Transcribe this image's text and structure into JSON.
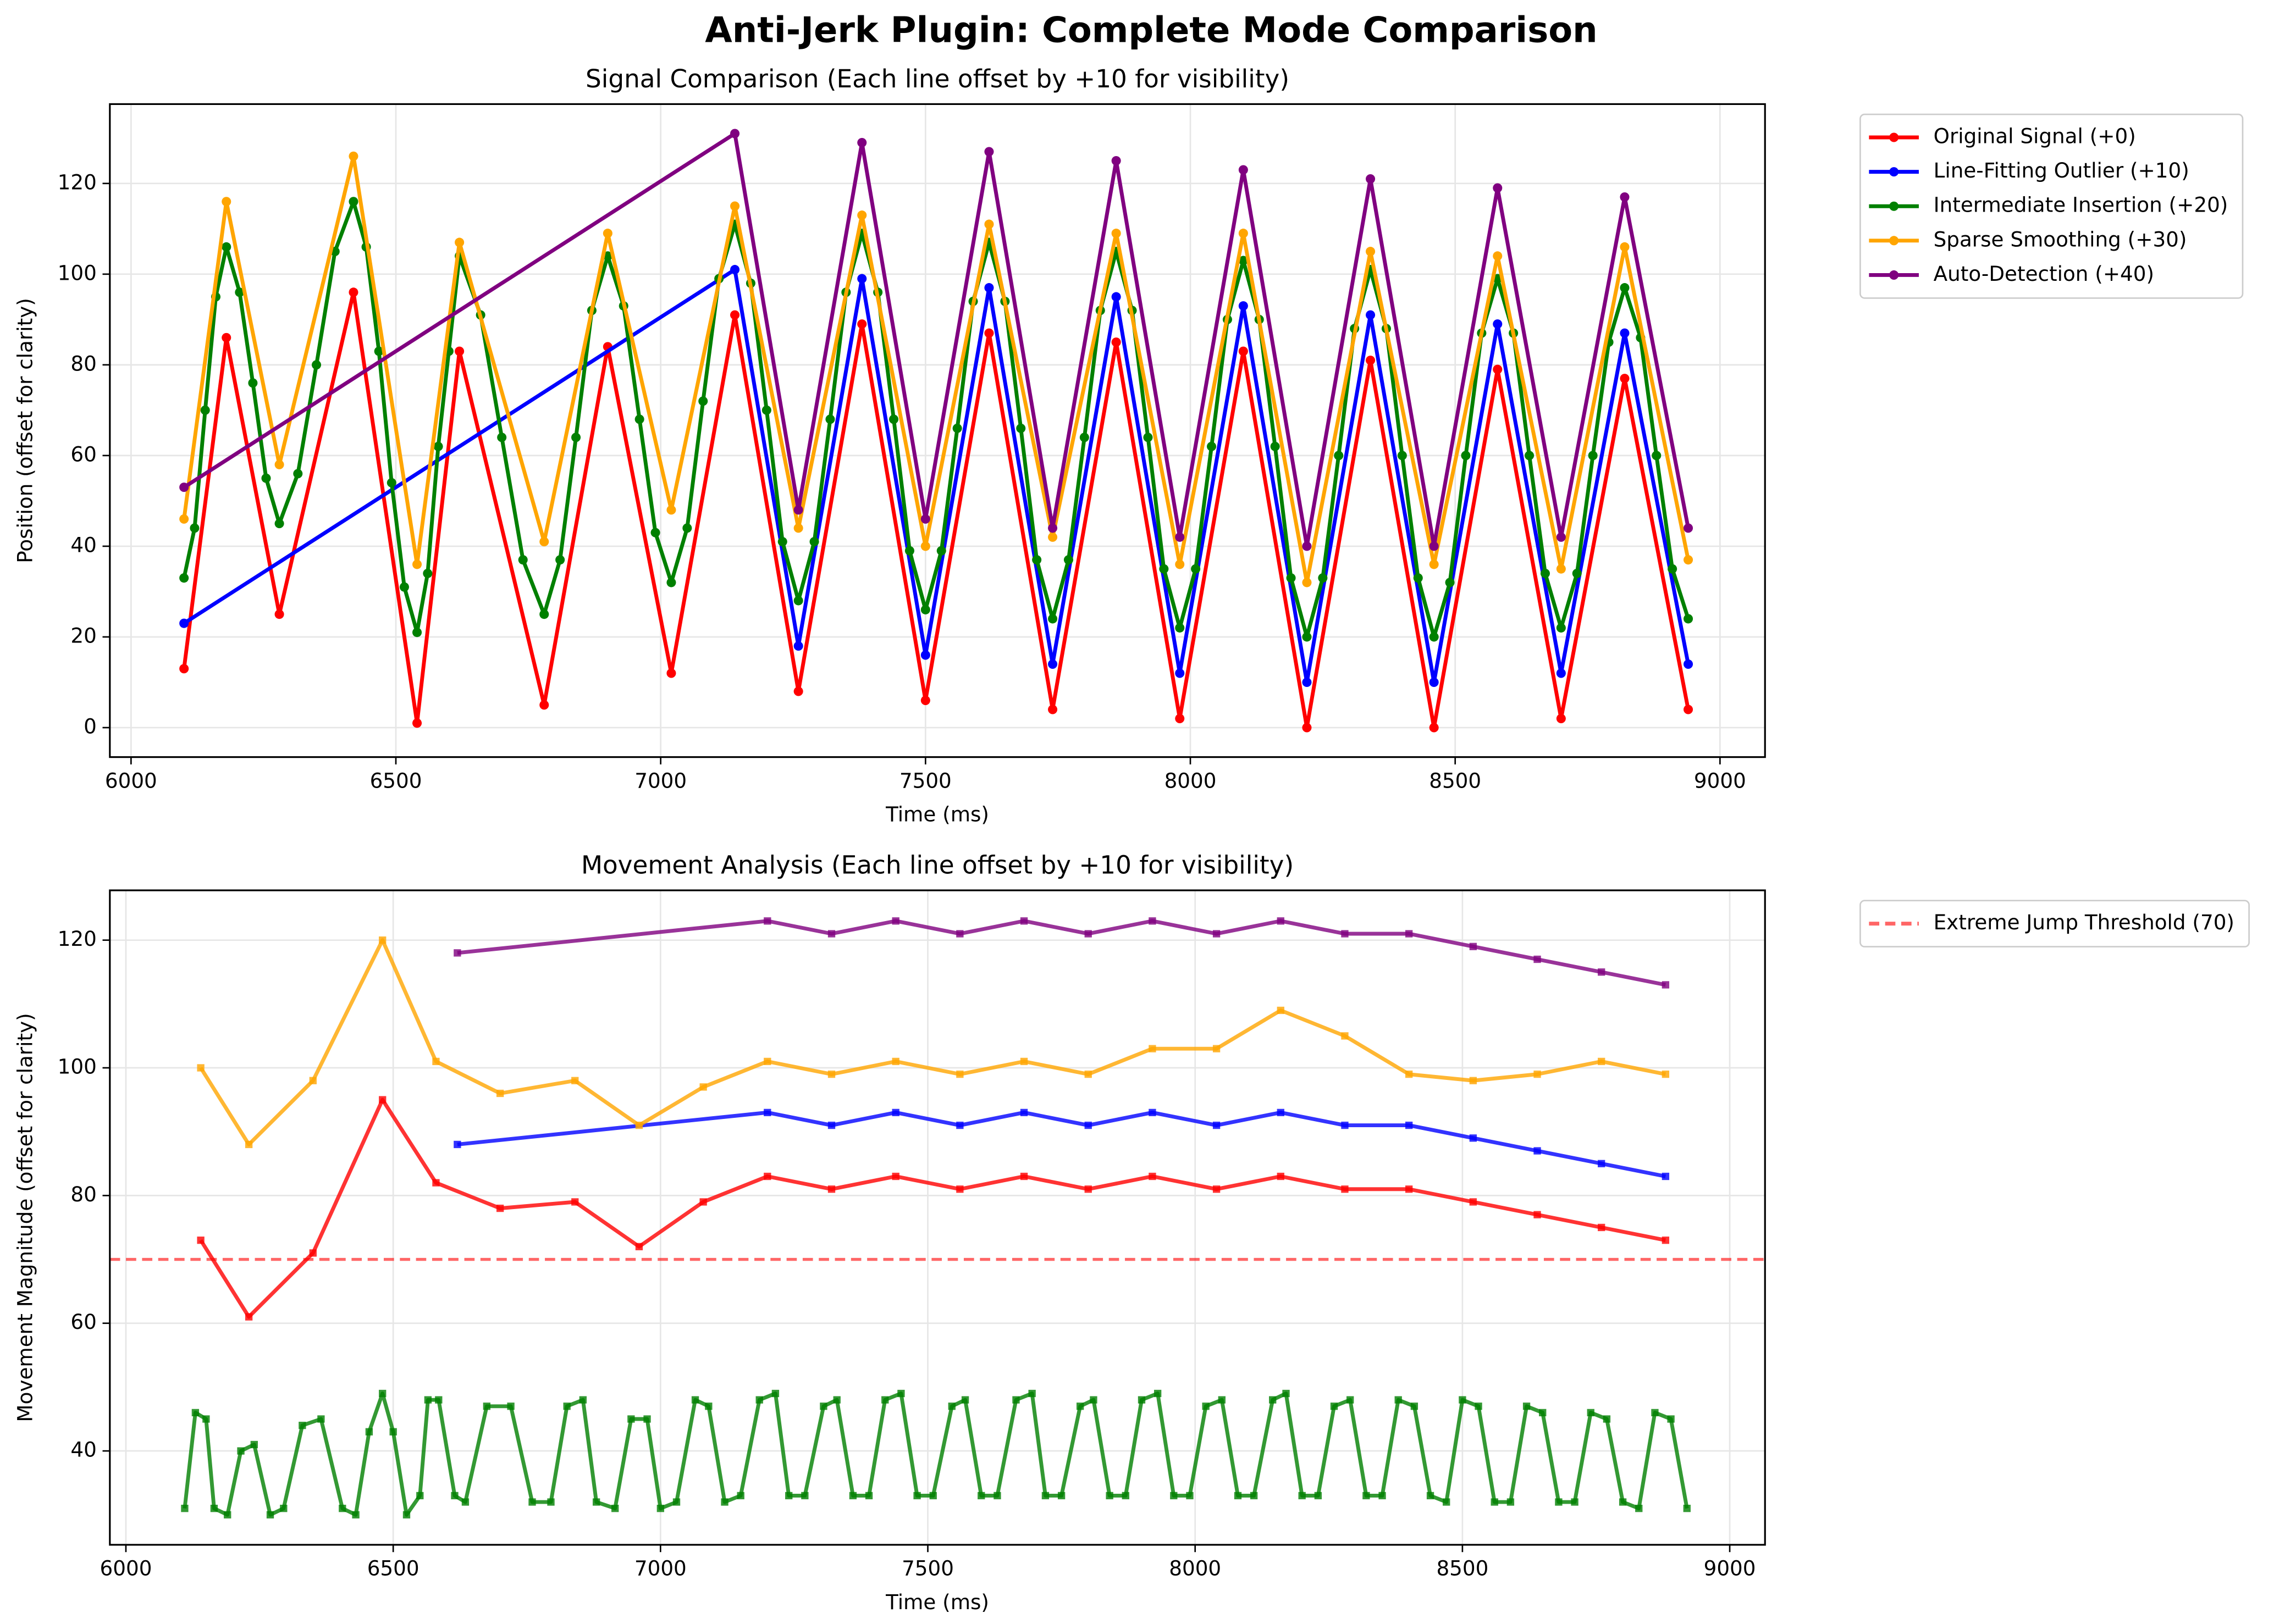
{
  "title": "Anti-Jerk Plugin: Complete Mode Comparison",
  "chart_data": [
    {
      "type": "line",
      "title": "Signal Comparison (Each line offset by +10 for visibility)",
      "xlabel": "Time (ms)",
      "ylabel": "Position (offset for clarity)",
      "xlim": [
        5960,
        9085
      ],
      "ylim": [
        -6.5,
        137.5
      ],
      "xticks": [
        6000,
        6500,
        7000,
        7500,
        8000,
        8500,
        9000
      ],
      "yticks": [
        0,
        20,
        40,
        60,
        80,
        100,
        120
      ],
      "grid": true,
      "marker": "circle",
      "legend": "outside upper right",
      "series": [
        {
          "name": "Original Signal (+0)",
          "color": "#ff0000",
          "x": [
            6100,
            6180,
            6280,
            6420,
            6540,
            6620,
            6780,
            6900,
            7020,
            7140,
            7260,
            7380,
            7500,
            7620,
            7740,
            7860,
            7980,
            8100,
            8220,
            8340,
            8460,
            8580,
            8700,
            8820,
            8940
          ],
          "values": [
            13,
            86,
            25,
            96,
            1,
            83,
            5,
            84,
            12,
            91,
            8,
            89,
            6,
            87,
            4,
            85,
            2,
            83,
            0,
            81,
            0,
            79,
            2,
            77,
            4
          ]
        },
        {
          "name": "Line-Fitting Outlier (+10)",
          "color": "#0000ff",
          "x": [
            6100,
            7140,
            7260,
            7380,
            7500,
            7620,
            7740,
            7860,
            7980,
            8100,
            8220,
            8340,
            8460,
            8580,
            8700,
            8820,
            8940
          ],
          "values": [
            23,
            101,
            18,
            99,
            16,
            97,
            14,
            95,
            12,
            93,
            10,
            91,
            10,
            89,
            12,
            87,
            14
          ]
        },
        {
          "name": "Intermediate Insertion (+20)",
          "color": "#008000",
          "x": [
            6100,
            6120,
            6140,
            6160,
            6180,
            6205,
            6230,
            6255,
            6280,
            6315,
            6350,
            6385,
            6420,
            6444,
            6468,
            6492,
            6516,
            6540,
            6560,
            6580,
            6600,
            6620,
            6660,
            6700,
            6740,
            6780,
            6810,
            6840,
            6870,
            6900,
            6930,
            6960,
            6990,
            7020,
            7050,
            7080,
            7110,
            7140,
            7170,
            7200,
            7230,
            7260,
            7290,
            7320,
            7350,
            7380,
            7410,
            7440,
            7470,
            7500,
            7530,
            7560,
            7590,
            7620,
            7650,
            7680,
            7710,
            7740,
            7770,
            7800,
            7830,
            7860,
            7890,
            7920,
            7950,
            7980,
            8010,
            8040,
            8070,
            8100,
            8130,
            8160,
            8190,
            8220,
            8250,
            8280,
            8310,
            8340,
            8370,
            8400,
            8430,
            8460,
            8490,
            8520,
            8550,
            8580,
            8610,
            8640,
            8670,
            8700,
            8730,
            8760,
            8790,
            8820,
            8850,
            8880,
            8910,
            8940
          ],
          "values": [
            33,
            44,
            70,
            95,
            106,
            96,
            76,
            55,
            45,
            56,
            80,
            105,
            116,
            106,
            83,
            54,
            31,
            21,
            34,
            62,
            83,
            104,
            91,
            64,
            37,
            25,
            37,
            64,
            92,
            104,
            93,
            68,
            43,
            32,
            44,
            72,
            99,
            111,
            98,
            70,
            41,
            28,
            41,
            68,
            96,
            109,
            96,
            68,
            39,
            26,
            39,
            66,
            94,
            107,
            94,
            66,
            37,
            24,
            37,
            64,
            92,
            105,
            92,
            64,
            35,
            22,
            35,
            62,
            90,
            103,
            90,
            62,
            33,
            20,
            33,
            60,
            88,
            101,
            88,
            60,
            33,
            20,
            32,
            60,
            87,
            99,
            87,
            60,
            34,
            22,
            34,
            60,
            85,
            97,
            86,
            60,
            35,
            24
          ]
        },
        {
          "name": "Sparse Smoothing (+30)",
          "color": "#ffa500",
          "x": [
            6100,
            6180,
            6280,
            6420,
            6540,
            6620,
            6780,
            6900,
            7020,
            7140,
            7260,
            7380,
            7500,
            7620,
            7740,
            7860,
            7980,
            8100,
            8220,
            8340,
            8460,
            8580,
            8700,
            8820,
            8940
          ],
          "values": [
            46,
            116,
            58,
            126,
            36,
            107,
            41,
            109,
            48,
            115,
            44,
            113,
            40,
            111,
            42,
            109,
            36,
            109,
            32,
            105,
            36,
            104,
            35,
            106,
            37
          ]
        },
        {
          "name": "Auto-Detection (+40)",
          "color": "#800080",
          "x": [
            6100,
            7140,
            7260,
            7380,
            7500,
            7620,
            7740,
            7860,
            7980,
            8100,
            8220,
            8340,
            8460,
            8580,
            8700,
            8820,
            8940
          ],
          "values": [
            53,
            131,
            48,
            129,
            46,
            127,
            44,
            125,
            42,
            123,
            40,
            121,
            40,
            119,
            42,
            117,
            44
          ]
        }
      ]
    },
    {
      "type": "line",
      "title": "Movement Analysis (Each line offset by +10 for visibility)",
      "xlabel": "Time (ms)",
      "ylabel": "Movement Magnitude (offset for clarity)",
      "xlim": [
        5970,
        9066
      ],
      "ylim": [
        25.3,
        127.8
      ],
      "xticks": [
        6000,
        6500,
        7000,
        7500,
        8000,
        8500,
        9000
      ],
      "yticks": [
        40,
        60,
        80,
        100,
        120
      ],
      "grid": true,
      "marker": "square",
      "legend": "outside upper right",
      "hlines": [
        {
          "value": 70,
          "label": "Extreme Jump Threshold (70)",
          "color": "#ff0000",
          "alpha": 0.6,
          "style": "dashed"
        }
      ],
      "series": [
        {
          "color": "#ff0000",
          "alpha": 0.8,
          "x": [
            6140,
            6230,
            6350,
            6480,
            6580,
            6700,
            6840,
            6960,
            7080,
            7200,
            7320,
            7440,
            7560,
            7680,
            7800,
            7920,
            8040,
            8160,
            8280,
            8400,
            8520,
            8640,
            8760,
            8880
          ],
          "values": [
            73,
            61,
            71,
            95,
            82,
            78,
            79,
            72,
            79,
            83,
            81,
            83,
            81,
            83,
            81,
            83,
            81,
            83,
            81,
            81,
            79,
            77,
            75,
            73
          ]
        },
        {
          "color": "#0000ff",
          "alpha": 0.8,
          "x": [
            6620,
            7200,
            7320,
            7440,
            7560,
            7680,
            7800,
            7920,
            8040,
            8160,
            8280,
            8400,
            8520,
            8640,
            8760,
            8880
          ],
          "values": [
            88,
            93,
            91,
            93,
            91,
            93,
            91,
            93,
            91,
            93,
            91,
            91,
            89,
            87,
            85,
            83
          ]
        },
        {
          "color": "#008000",
          "alpha": 0.8,
          "x": [
            6110,
            6130,
            6150,
            6165,
            6190,
            6215,
            6240,
            6270,
            6295,
            6330,
            6365,
            6405,
            6430,
            6455,
            6480,
            6500,
            6525,
            6550,
            6565,
            6585,
            6615,
            6635,
            6675,
            6720,
            6760,
            6795,
            6825,
            6855,
            6880,
            6915,
            6945,
            6975,
            7000,
            7030,
            7065,
            7090,
            7120,
            7150,
            7185,
            7215,
            7240,
            7270,
            7305,
            7330,
            7360,
            7390,
            7420,
            7450,
            7480,
            7510,
            7545,
            7570,
            7600,
            7630,
            7665,
            7695,
            7720,
            7750,
            7785,
            7810,
            7840,
            7870,
            7900,
            7930,
            7960,
            7990,
            8020,
            8050,
            8080,
            8110,
            8145,
            8170,
            8200,
            8230,
            8260,
            8290,
            8320,
            8350,
            8380,
            8410,
            8440,
            8470,
            8500,
            8530,
            8560,
            8590,
            8620,
            8650,
            8680,
            8710,
            8740,
            8770,
            8800,
            8830,
            8860,
            8890,
            8920
          ],
          "values": [
            31,
            46,
            45,
            31,
            30,
            40,
            41,
            30,
            31,
            44,
            45,
            31,
            30,
            43,
            49,
            43,
            30,
            33,
            48,
            48,
            33,
            32,
            47,
            47,
            32,
            32,
            47,
            48,
            32,
            31,
            45,
            45,
            31,
            32,
            48,
            47,
            32,
            33,
            48,
            49,
            33,
            33,
            47,
            48,
            33,
            33,
            48,
            49,
            33,
            33,
            47,
            48,
            33,
            33,
            48,
            49,
            33,
            33,
            47,
            48,
            33,
            33,
            48,
            49,
            33,
            33,
            47,
            48,
            33,
            33,
            48,
            49,
            33,
            33,
            47,
            48,
            33,
            33,
            48,
            47,
            33,
            32,
            48,
            47,
            32,
            32,
            47,
            46,
            32,
            32,
            46,
            45,
            32,
            31,
            46,
            45,
            31
          ]
        },
        {
          "color": "#ffa500",
          "alpha": 0.8,
          "x": [
            6140,
            6230,
            6350,
            6480,
            6580,
            6700,
            6840,
            6960,
            7080,
            7200,
            7320,
            7440,
            7560,
            7680,
            7800,
            7920,
            8040,
            8160,
            8280,
            8400,
            8520,
            8640,
            8760,
            8880
          ],
          "values": [
            100,
            88,
            98,
            120,
            101,
            96,
            98,
            91,
            97,
            101,
            99,
            101,
            99,
            101,
            99,
            103,
            103,
            109,
            105,
            99,
            98,
            99,
            101,
            99
          ]
        },
        {
          "color": "#800080",
          "alpha": 0.8,
          "x": [
            6620,
            7200,
            7320,
            7440,
            7560,
            7680,
            7800,
            7920,
            8040,
            8160,
            8280,
            8400,
            8520,
            8640,
            8760,
            8880
          ],
          "values": [
            118,
            123,
            121,
            123,
            121,
            123,
            121,
            123,
            121,
            123,
            121,
            121,
            119,
            117,
            115,
            113
          ]
        }
      ]
    }
  ]
}
